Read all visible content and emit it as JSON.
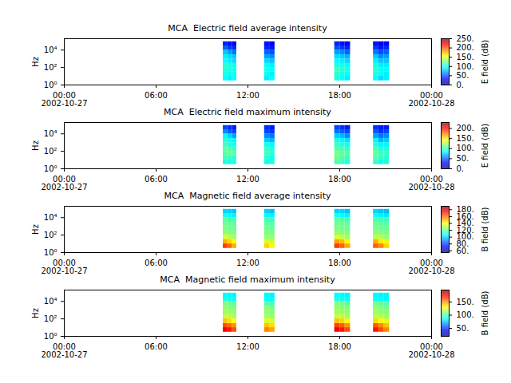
{
  "chart_data": [
    {
      "type": "heatmap",
      "title": "MCA  Electric field average intensity",
      "ylabel": "Hz",
      "log": "y",
      "xlim": [
        "2002-10-27T00:00",
        "2002-10-28T00:00"
      ],
      "xticks": [
        {
          "value": "2002-10-27T00:00",
          "label": "00:00\n2002-10-27"
        },
        {
          "value": "2002-10-27T06:00",
          "label": "06:00"
        },
        {
          "value": "2002-10-27T12:00",
          "label": "12:00"
        },
        {
          "value": "2002-10-27T18:00",
          "label": "18:00"
        },
        {
          "value": "2002-10-28T00:00",
          "label": "00:00\n2002-10-28"
        }
      ],
      "ylim": [
        1,
        200000
      ],
      "yticks": [
        {
          "value": 1,
          "label": "10⁰"
        },
        {
          "value": 100,
          "label": "10²"
        },
        {
          "value": 10000,
          "label": "10⁴"
        }
      ],
      "freq_bins": [
        3,
        10,
        30,
        100,
        300,
        1000,
        3000,
        10000,
        30000,
        90000
      ],
      "cells": [
        {
          "start": "2002-10-27T10:23",
          "end": "2002-10-27T10:41",
          "values": [
            95,
            100,
            100,
            105,
            95,
            90,
            80,
            55,
            40
          ]
        },
        {
          "start": "2002-10-27T10:41",
          "end": "2002-10-27T10:59",
          "values": [
            90,
            95,
            105,
            100,
            90,
            85,
            70,
            45,
            35
          ]
        },
        {
          "start": "2002-10-27T10:59",
          "end": "2002-10-27T11:16",
          "values": [
            95,
            95,
            100,
            95,
            85,
            80,
            60,
            40,
            30
          ]
        },
        {
          "start": "2002-10-27T13:05",
          "end": "2002-10-27T13:25",
          "values": [
            90,
            95,
            100,
            95,
            85,
            70,
            55,
            40,
            35
          ]
        },
        {
          "start": "2002-10-27T13:25",
          "end": "2002-10-27T13:46",
          "values": [
            95,
            90,
            95,
            90,
            80,
            65,
            50,
            35,
            30
          ]
        },
        {
          "start": "2002-10-27T17:40",
          "end": "2002-10-27T18:01",
          "values": [
            100,
            105,
            110,
            100,
            95,
            85,
            70,
            50,
            40
          ]
        },
        {
          "start": "2002-10-27T18:01",
          "end": "2002-10-27T18:21",
          "values": [
            95,
            100,
            105,
            100,
            90,
            80,
            65,
            45,
            35
          ]
        },
        {
          "start": "2002-10-27T18:21",
          "end": "2002-10-27T18:42",
          "values": [
            90,
            95,
            100,
            95,
            85,
            75,
            55,
            40,
            30
          ]
        },
        {
          "start": "2002-10-27T20:12",
          "end": "2002-10-27T20:33",
          "values": [
            95,
            100,
            105,
            100,
            90,
            80,
            60,
            45,
            35
          ]
        },
        {
          "start": "2002-10-27T20:33",
          "end": "2002-10-27T20:54",
          "values": [
            85,
            95,
            95,
            90,
            80,
            65,
            50,
            35,
            30
          ]
        },
        {
          "start": "2002-10-27T20:54",
          "end": "2002-10-27T21:15",
          "values": [
            90,
            90,
            95,
            90,
            80,
            70,
            55,
            40,
            30
          ]
        }
      ],
      "colorbar": {
        "label": "E field (dB)",
        "range": [
          0,
          250
        ],
        "ticks": [
          {
            "value": 0,
            "label": "0."
          },
          {
            "value": 50,
            "label": "50."
          },
          {
            "value": 100,
            "label": "100."
          },
          {
            "value": 150,
            "label": "150."
          },
          {
            "value": 200,
            "label": "200."
          },
          {
            "value": 250,
            "label": "250."
          }
        ]
      }
    },
    {
      "type": "heatmap",
      "title": "MCA  Electric field maximum intensity",
      "ylabel": "Hz",
      "log": "y",
      "xlim": [
        "2002-10-27T00:00",
        "2002-10-28T00:00"
      ],
      "xticks": [
        {
          "value": "2002-10-27T00:00",
          "label": "00:00\n2002-10-27"
        },
        {
          "value": "2002-10-27T06:00",
          "label": "06:00"
        },
        {
          "value": "2002-10-27T12:00",
          "label": "12:00"
        },
        {
          "value": "2002-10-27T18:00",
          "label": "18:00"
        },
        {
          "value": "2002-10-28T00:00",
          "label": "00:00\n2002-10-28"
        }
      ],
      "ylim": [
        1,
        200000
      ],
      "yticks": [
        {
          "value": 1,
          "label": "10⁰"
        },
        {
          "value": 100,
          "label": "10²"
        },
        {
          "value": 10000,
          "label": "10⁴"
        }
      ],
      "freq_bins": [
        3,
        10,
        30,
        100,
        300,
        1000,
        3000,
        10000,
        30000,
        90000
      ],
      "cells": [
        {
          "start": "2002-10-27T10:23",
          "end": "2002-10-27T10:41",
          "values": [
            95,
            100,
            105,
            110,
            100,
            95,
            85,
            60,
            45
          ]
        },
        {
          "start": "2002-10-27T10:41",
          "end": "2002-10-27T10:59",
          "values": [
            90,
            100,
            110,
            105,
            95,
            90,
            75,
            50,
            40
          ]
        },
        {
          "start": "2002-10-27T10:59",
          "end": "2002-10-27T11:16",
          "values": [
            95,
            95,
            105,
            100,
            90,
            85,
            65,
            45,
            35
          ]
        },
        {
          "start": "2002-10-27T13:05",
          "end": "2002-10-27T13:25",
          "values": [
            90,
            95,
            100,
            100,
            90,
            75,
            60,
            45,
            40
          ]
        },
        {
          "start": "2002-10-27T13:25",
          "end": "2002-10-27T13:46",
          "values": [
            95,
            90,
            95,
            95,
            85,
            70,
            55,
            40,
            35
          ]
        },
        {
          "start": "2002-10-27T17:40",
          "end": "2002-10-27T18:01",
          "values": [
            105,
            110,
            115,
            105,
            100,
            90,
            75,
            55,
            45
          ]
        },
        {
          "start": "2002-10-27T18:01",
          "end": "2002-10-27T18:21",
          "values": [
            100,
            105,
            110,
            105,
            95,
            85,
            70,
            50,
            40
          ]
        },
        {
          "start": "2002-10-27T18:21",
          "end": "2002-10-27T18:42",
          "values": [
            95,
            100,
            105,
            100,
            90,
            80,
            60,
            45,
            35
          ]
        },
        {
          "start": "2002-10-27T20:12",
          "end": "2002-10-27T20:33",
          "values": [
            100,
            105,
            110,
            105,
            95,
            85,
            65,
            50,
            40
          ]
        },
        {
          "start": "2002-10-27T20:33",
          "end": "2002-10-27T20:54",
          "values": [
            90,
            100,
            100,
            95,
            85,
            70,
            55,
            40,
            35
          ]
        },
        {
          "start": "2002-10-27T20:54",
          "end": "2002-10-27T21:15",
          "values": [
            95,
            95,
            100,
            95,
            85,
            75,
            60,
            45,
            35
          ]
        }
      ],
      "colorbar": {
        "label": "E field (dB)",
        "range": [
          0,
          230
        ],
        "ticks": [
          {
            "value": 0,
            "label": "0."
          },
          {
            "value": 50,
            "label": "50."
          },
          {
            "value": 100,
            "label": "100."
          },
          {
            "value": 150,
            "label": "150."
          },
          {
            "value": 200,
            "label": "200."
          }
        ]
      }
    },
    {
      "type": "heatmap",
      "title": "MCA  Magnetic field average intensity",
      "ylabel": "Hz",
      "log": "y",
      "xlim": [
        "2002-10-27T00:00",
        "2002-10-28T00:00"
      ],
      "xticks": [
        {
          "value": "2002-10-27T00:00",
          "label": "00:00\n2002-10-27"
        },
        {
          "value": "2002-10-27T06:00",
          "label": "06:00"
        },
        {
          "value": "2002-10-27T12:00",
          "label": "12:00"
        },
        {
          "value": "2002-10-27T18:00",
          "label": "18:00"
        },
        {
          "value": "2002-10-28T00:00",
          "label": "00:00\n2002-10-28"
        }
      ],
      "ylim": [
        1,
        200000
      ],
      "yticks": [
        {
          "value": 1,
          "label": "10⁰"
        },
        {
          "value": 100,
          "label": "10²"
        },
        {
          "value": 10000,
          "label": "10⁴"
        }
      ],
      "freq_bins": [
        3,
        10,
        30,
        100,
        300,
        1000,
        3000,
        10000,
        30000,
        90000
      ],
      "cells": [
        {
          "start": "2002-10-27T10:23",
          "end": "2002-10-27T10:41",
          "values": [
            165,
            150,
            135,
            125,
            122,
            120,
            118,
            108,
            100
          ]
        },
        {
          "start": "2002-10-27T10:41",
          "end": "2002-10-27T10:59",
          "values": [
            160,
            145,
            130,
            124,
            121,
            120,
            116,
            106,
            100
          ]
        },
        {
          "start": "2002-10-27T10:59",
          "end": "2002-10-27T11:16",
          "values": [
            150,
            140,
            128,
            122,
            120,
            118,
            114,
            104,
            98
          ]
        },
        {
          "start": "2002-10-27T13:05",
          "end": "2002-10-27T13:25",
          "values": [
            145,
            135,
            126,
            122,
            120,
            118,
            115,
            105,
            100
          ]
        },
        {
          "start": "2002-10-27T13:25",
          "end": "2002-10-27T13:46",
          "values": [
            140,
            132,
            125,
            121,
            119,
            117,
            113,
            104,
            98
          ]
        },
        {
          "start": "2002-10-27T17:40",
          "end": "2002-10-27T18:01",
          "values": [
            165,
            152,
            135,
            125,
            122,
            120,
            118,
            108,
            100
          ]
        },
        {
          "start": "2002-10-27T18:01",
          "end": "2002-10-27T18:21",
          "values": [
            160,
            148,
            132,
            124,
            121,
            120,
            117,
            106,
            100
          ]
        },
        {
          "start": "2002-10-27T18:21",
          "end": "2002-10-27T18:42",
          "values": [
            150,
            140,
            128,
            122,
            120,
            118,
            114,
            104,
            98
          ]
        },
        {
          "start": "2002-10-27T20:12",
          "end": "2002-10-27T20:33",
          "values": [
            160,
            150,
            132,
            124,
            121,
            120,
            116,
            106,
            100
          ]
        },
        {
          "start": "2002-10-27T20:33",
          "end": "2002-10-27T20:54",
          "values": [
            155,
            142,
            130,
            123,
            120,
            118,
            114,
            104,
            98
          ]
        },
        {
          "start": "2002-10-27T20:54",
          "end": "2002-10-27T21:15",
          "values": [
            145,
            136,
            126,
            122,
            120,
            117,
            113,
            103,
            97
          ]
        }
      ],
      "colorbar": {
        "label": "B field (dB)",
        "range": [
          55,
          190
        ],
        "ticks": [
          {
            "value": 60,
            "label": "60."
          },
          {
            "value": 80,
            "label": "80."
          },
          {
            "value": 100,
            "label": "100."
          },
          {
            "value": 120,
            "label": "120."
          },
          {
            "value": 140,
            "label": "140."
          },
          {
            "value": 160,
            "label": "160."
          },
          {
            "value": 180,
            "label": "180."
          }
        ]
      }
    },
    {
      "type": "heatmap",
      "title": "MCA  Magnetic field maximum intensity",
      "ylabel": "Hz",
      "log": "y",
      "xlim": [
        "2002-10-27T00:00",
        "2002-10-28T00:00"
      ],
      "xticks": [
        {
          "value": "2002-10-27T00:00",
          "label": "00:00\n2002-10-27"
        },
        {
          "value": "2002-10-27T06:00",
          "label": "06:00"
        },
        {
          "value": "2002-10-27T12:00",
          "label": "12:00"
        },
        {
          "value": "2002-10-27T18:00",
          "label": "18:00"
        },
        {
          "value": "2002-10-28T00:00",
          "label": "00:00\n2002-10-28"
        }
      ],
      "ylim": [
        1,
        200000
      ],
      "yticks": [
        {
          "value": 1,
          "label": "10⁰"
        },
        {
          "value": 100,
          "label": "10²"
        },
        {
          "value": 10000,
          "label": "10⁴"
        }
      ],
      "freq_bins": [
        3,
        10,
        30,
        100,
        300,
        1000,
        3000,
        10000,
        30000,
        90000
      ],
      "cells": [
        {
          "start": "2002-10-27T10:23",
          "end": "2002-10-27T10:41",
          "values": [
            175,
            160,
            140,
            120,
            112,
            110,
            108,
            90,
            85
          ]
        },
        {
          "start": "2002-10-27T10:41",
          "end": "2002-10-27T10:59",
          "values": [
            170,
            155,
            135,
            118,
            112,
            110,
            105,
            88,
            85
          ]
        },
        {
          "start": "2002-10-27T10:59",
          "end": "2002-10-27T11:16",
          "values": [
            160,
            148,
            130,
            115,
            110,
            108,
            102,
            86,
            84
          ]
        },
        {
          "start": "2002-10-27T13:05",
          "end": "2002-10-27T13:25",
          "values": [
            150,
            140,
            125,
            114,
            110,
            108,
            100,
            86,
            85
          ]
        },
        {
          "start": "2002-10-27T13:25",
          "end": "2002-10-27T13:46",
          "values": [
            145,
            135,
            122,
            112,
            108,
            106,
            98,
            85,
            84
          ]
        },
        {
          "start": "2002-10-27T17:40",
          "end": "2002-10-27T18:01",
          "values": [
            175,
            162,
            140,
            120,
            113,
            110,
            108,
            90,
            86
          ]
        },
        {
          "start": "2002-10-27T18:01",
          "end": "2002-10-27T18:21",
          "values": [
            170,
            158,
            136,
            118,
            112,
            110,
            106,
            88,
            85
          ]
        },
        {
          "start": "2002-10-27T18:21",
          "end": "2002-10-27T18:42",
          "values": [
            160,
            148,
            130,
            115,
            110,
            108,
            102,
            86,
            84
          ]
        },
        {
          "start": "2002-10-27T20:12",
          "end": "2002-10-27T20:33",
          "values": [
            170,
            158,
            136,
            118,
            112,
            110,
            106,
            88,
            85
          ]
        },
        {
          "start": "2002-10-27T20:33",
          "end": "2002-10-27T20:54",
          "values": [
            160,
            150,
            130,
            116,
            110,
            108,
            102,
            86,
            84
          ]
        },
        {
          "start": "2002-10-27T20:54",
          "end": "2002-10-27T21:15",
          "values": [
            150,
            140,
            125,
            114,
            108,
            106,
            100,
            85,
            84
          ]
        }
      ],
      "colorbar": {
        "label": "B field (dB)",
        "range": [
          20,
          195
        ],
        "ticks": [
          {
            "value": 50,
            "label": "50."
          },
          {
            "value": 100,
            "label": "100."
          },
          {
            "value": 150,
            "label": "150."
          }
        ]
      }
    }
  ]
}
